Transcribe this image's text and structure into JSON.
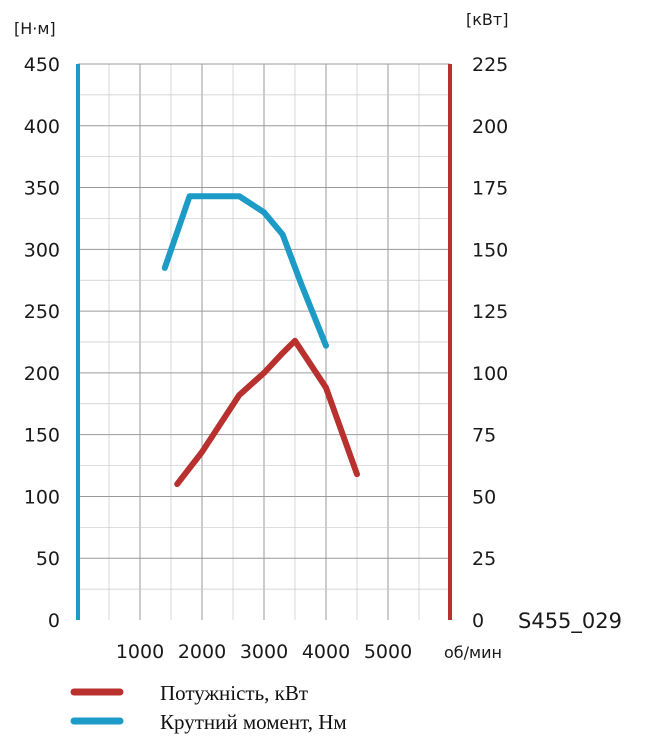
{
  "chart_data": {
    "type": "line",
    "x_unit_label": "об/мин",
    "x_ticks": [
      1000,
      2000,
      3000,
      4000,
      5000
    ],
    "xlim": [
      0,
      6000
    ],
    "left_axis": {
      "unit_label": "[Н·м]",
      "ylim": [
        0,
        450
      ],
      "ticks": [
        0,
        50,
        100,
        150,
        200,
        250,
        300,
        350,
        400,
        450
      ]
    },
    "right_axis": {
      "unit_label": "[кВт]",
      "ylim": [
        0,
        225
      ],
      "ticks": [
        0,
        25,
        50,
        75,
        100,
        125,
        150,
        175,
        200,
        225
      ]
    },
    "grid": true,
    "code_label": "S455_029",
    "series": [
      {
        "name": "Крутний момент, Нм",
        "axis": "left",
        "color": "#1b9bc6",
        "points": [
          [
            1400,
            285
          ],
          [
            1800,
            343
          ],
          [
            2600,
            343
          ],
          [
            3000,
            330
          ],
          [
            3300,
            312
          ],
          [
            3600,
            272
          ],
          [
            4000,
            222
          ]
        ]
      },
      {
        "name": "Потужність, кВт",
        "axis": "right",
        "color": "#b8312f",
        "points": [
          [
            1600,
            55
          ],
          [
            2000,
            68
          ],
          [
            2600,
            91
          ],
          [
            3000,
            100
          ],
          [
            3300,
            108
          ],
          [
            3500,
            113
          ],
          [
            4000,
            94
          ],
          [
            4500,
            59
          ]
        ]
      }
    ],
    "legend": [
      {
        "label": "Потужність, кВт",
        "color": "#b8312f"
      },
      {
        "label": "Крутний момент, Нм",
        "color": "#1b9bc6"
      }
    ]
  }
}
